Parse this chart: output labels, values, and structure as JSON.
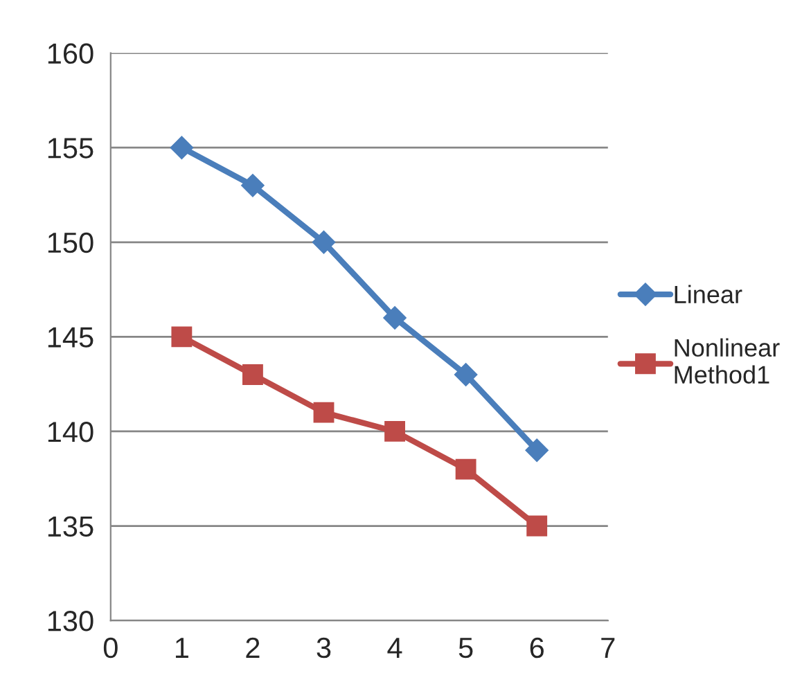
{
  "chart_data": {
    "type": "line",
    "x": [
      1,
      2,
      3,
      4,
      5,
      6
    ],
    "series": [
      {
        "name": "Linear",
        "color": "#4a7ebb",
        "marker": "diamond",
        "values": [
          155,
          153,
          150,
          146,
          143,
          139
        ]
      },
      {
        "name": "Nonlinear\nMethod1",
        "color": "#be4b48",
        "marker": "square",
        "values": [
          145,
          143,
          141,
          140,
          138,
          135
        ]
      }
    ],
    "xlim": [
      0,
      7
    ],
    "xticks": [
      0,
      1,
      2,
      3,
      4,
      5,
      6,
      7
    ],
    "ylim": [
      130,
      160
    ],
    "yticks": [
      130,
      135,
      140,
      145,
      150,
      155,
      160
    ],
    "grid": "y",
    "legend": "right",
    "line_style": "solid"
  }
}
